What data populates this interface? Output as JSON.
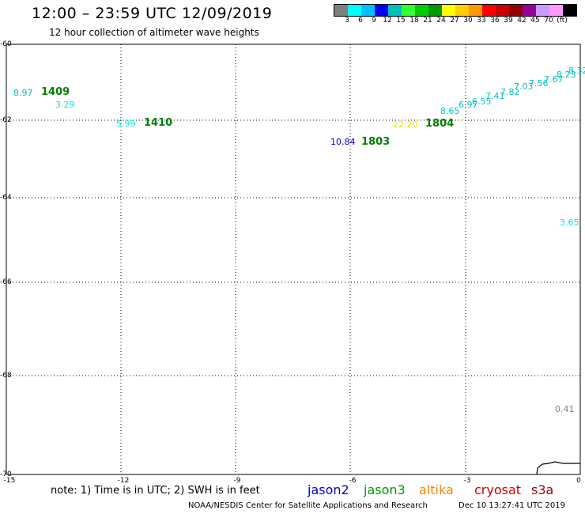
{
  "header": {
    "title": "12:00 – 23:59 UTC 12/09/2019",
    "subtitle": "12 hour collection of altimeter wave heights"
  },
  "colorbar": {
    "colors": [
      "#808080",
      "#00ffff",
      "#00bfff",
      "#0000ff",
      "#00bfbf",
      "#33ff33",
      "#00cc00",
      "#009900",
      "#ffff00",
      "#ffcc00",
      "#ff9900",
      "#ff0000",
      "#cc0000",
      "#990000",
      "#990099",
      "#cc99ff",
      "#ff99ff",
      "#000000"
    ],
    "labels": [
      "3",
      "6",
      "9",
      "12",
      "15",
      "18",
      "21",
      "24",
      "27",
      "30",
      "33",
      "36",
      "39",
      "42",
      "45",
      "70",
      "(ft)"
    ]
  },
  "axes": {
    "y_labels": [
      "-60",
      "-62",
      "-64",
      "-66",
      "-68",
      "-70"
    ],
    "x_labels": [
      "-15",
      "-12",
      "-9",
      "-6",
      "-3",
      "0"
    ]
  },
  "observations": [
    {
      "value": "8.97",
      "color": "#00bfbf"
    },
    {
      "value": "3.29",
      "color": "#00e5e5"
    },
    {
      "value": "5.99",
      "color": "#00e5e5"
    },
    {
      "value": "10.84",
      "color": "#0000cc"
    },
    {
      "value": "22.20",
      "color": "#e5e500"
    },
    {
      "value": "8.65",
      "color": "#00bfbf"
    },
    {
      "value": "6.97",
      "color": "#00bfbf"
    },
    {
      "value": "6.55",
      "color": "#00bfbf"
    },
    {
      "value": "7.41",
      "color": "#00bfbf"
    },
    {
      "value": "7.82",
      "color": "#00bfbf"
    },
    {
      "value": "7.03",
      "color": "#00bfbf"
    },
    {
      "value": "7.56",
      "color": "#00bfbf"
    },
    {
      "value": "7.67",
      "color": "#00bfbf"
    },
    {
      "value": "8.23",
      "color": "#00bfbf"
    },
    {
      "value": "8.32",
      "color": "#00bfbf"
    },
    {
      "value": "3.65",
      "color": "#00e5e5"
    },
    {
      "value": "0.41",
      "color": "#808080"
    }
  ],
  "passes": [
    "1409",
    "1410",
    "1803",
    "1804"
  ],
  "footer": {
    "note": "note:  1) Time is in UTC;  2) SWH is in feet",
    "satellites": [
      {
        "name": "jason2",
        "color": "#0000cc"
      },
      {
        "name": "jason3",
        "color": "#009900"
      },
      {
        "name": "altika",
        "color": "#ff8000"
      },
      {
        "name": "cryosat",
        "color": "#cc0000"
      },
      {
        "name": "s3a",
        "color": "#990000"
      }
    ],
    "credit": "NOAA/NESDIS Center for Satellite Applications and Research",
    "timestamp": "Dec 10 13:27:41 UTC 2019"
  }
}
